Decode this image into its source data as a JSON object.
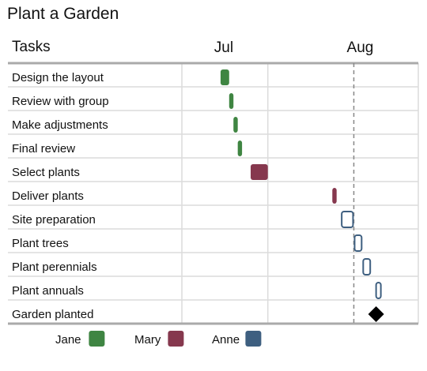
{
  "chart_data": {
    "type": "gantt",
    "title": "Plant a Garden",
    "task_column_header": "Tasks",
    "time_axis": {
      "start": "2023-06-22",
      "end": "2023-08-16",
      "major_ticks": [
        {
          "date": "2023-07-01",
          "label": "Jul"
        },
        {
          "date": "2023-08-01",
          "label": "Aug"
        }
      ],
      "gridlines": [
        "2023-06-22",
        "2023-07-12"
      ],
      "marker_line": {
        "date": "2023-08-01",
        "style": "dashed"
      }
    },
    "legend": {
      "position": "bottom",
      "items": [
        {
          "name": "Jane",
          "color": "#3f8542",
          "style": "filled"
        },
        {
          "name": "Mary",
          "color": "#86384e",
          "style": "filled"
        },
        {
          "name": "Anne",
          "color": "#3e5f80",
          "style": "filled"
        }
      ]
    },
    "tasks": [
      {
        "name": "Design the layout",
        "owner": "Jane",
        "start": "2023-07-01",
        "end": "2023-07-03"
      },
      {
        "name": "Review with group",
        "owner": "Jane",
        "start": "2023-07-03",
        "end": "2023-07-04"
      },
      {
        "name": "Make adjustments",
        "owner": "Jane",
        "start": "2023-07-04",
        "end": "2023-07-05"
      },
      {
        "name": "Final review",
        "owner": "Jane",
        "start": "2023-07-05",
        "end": "2023-07-06"
      },
      {
        "name": "Select plants",
        "owner": "Mary",
        "start": "2023-07-08",
        "end": "2023-07-12"
      },
      {
        "name": "Deliver plants",
        "owner": "Mary",
        "start": "2023-07-27",
        "end": "2023-07-28"
      },
      {
        "name": "Site preparation",
        "owner": "Anne",
        "start": "2023-07-29",
        "end": "2023-08-01",
        "style": "outline"
      },
      {
        "name": "Plant trees",
        "owner": "Anne",
        "start": "2023-08-01",
        "end": "2023-08-03",
        "style": "outline"
      },
      {
        "name": "Plant perennials",
        "owner": "Anne",
        "start": "2023-08-03",
        "end": "2023-08-05",
        "style": "outline"
      },
      {
        "name": "Plant annuals",
        "owner": "Anne",
        "start": "2023-08-06",
        "end": "2023-08-07",
        "style": "outline"
      },
      {
        "name": "Garden planted",
        "owner": "",
        "start": "2023-08-06",
        "end": "2023-08-06",
        "milestone": true
      }
    ]
  }
}
